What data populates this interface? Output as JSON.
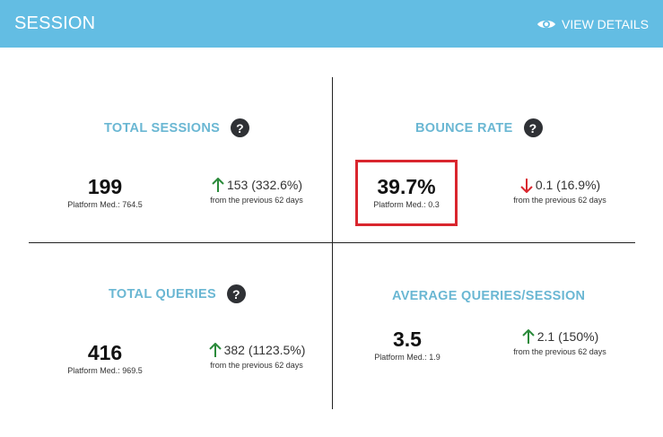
{
  "header": {
    "title": "SESSION",
    "view_details_label": "VIEW DETAILS",
    "view_details_icon": "eye-icon"
  },
  "colors": {
    "header_bg": "#63bde3",
    "title_text": "#6ab7d3",
    "up_arrow": "#2a8a3a",
    "down_arrow": "#d9262e",
    "highlight_border": "#d9262e"
  },
  "metrics": [
    {
      "title": "TOTAL SESSIONS",
      "has_help": true,
      "help_label": "?",
      "value": "199",
      "platform_median": "Platform Med.: 764.5",
      "change_direction": "up",
      "change_text": "153 (332.6%)",
      "change_period": "from the previous 62 days"
    },
    {
      "title": "BOUNCE RATE",
      "has_help": true,
      "help_label": "?",
      "value": "39.7%",
      "platform_median": "Platform Med.: 0.3",
      "change_direction": "down",
      "change_text": "0.1 (16.9%)",
      "change_period": "from the previous 62 days",
      "highlighted": true
    },
    {
      "title": "TOTAL QUERIES",
      "has_help": true,
      "help_label": "?",
      "value": "416",
      "platform_median": "Platform Med.: 969.5",
      "change_direction": "up",
      "change_text": "382 (1123.5%)",
      "change_period": "from the previous 62 days"
    },
    {
      "title": "AVERAGE QUERIES/SESSION",
      "has_help": false,
      "value": "3.5",
      "platform_median": "Platform Med.: 1.9",
      "change_direction": "up",
      "change_text": "2.1 (150%)",
      "change_period": "from the previous 62 days"
    }
  ]
}
